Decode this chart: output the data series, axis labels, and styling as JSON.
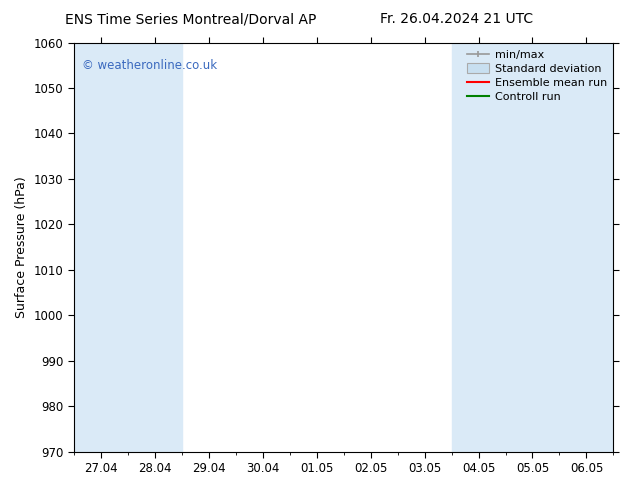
{
  "title_left": "ENS Time Series Montreal/Dorval AP",
  "title_right": "Fr. 26.04.2024 21 UTC",
  "ylabel": "Surface Pressure (hPa)",
  "ylim": [
    970,
    1060
  ],
  "yticks": [
    970,
    980,
    990,
    1000,
    1010,
    1020,
    1030,
    1040,
    1050,
    1060
  ],
  "x_labels": [
    "27.04",
    "28.04",
    "29.04",
    "30.04",
    "01.05",
    "02.05",
    "03.05",
    "04.05",
    "05.05",
    "06.05"
  ],
  "watermark": "© weatheronline.co.uk",
  "watermark_color": "#3b6abf",
  "bg_color": "#ffffff",
  "plot_bg_color": "#ffffff",
  "shaded_band_color": "#daeaf7",
  "shaded_ranges": [
    [
      0,
      2
    ],
    [
      7,
      10
    ]
  ],
  "legend_items": [
    {
      "label": "min/max"
    },
    {
      "label": "Standard deviation"
    },
    {
      "label": "Ensemble mean run",
      "color": "#ff0000"
    },
    {
      "label": "Controll run",
      "color": "#008000"
    }
  ],
  "title_fontsize": 10,
  "tick_label_fontsize": 8.5,
  "axis_label_fontsize": 9,
  "legend_fontsize": 8
}
